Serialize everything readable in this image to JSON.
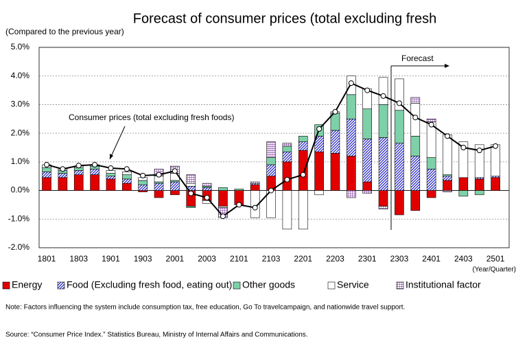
{
  "chart_data": {
    "type": "bar",
    "title": "Forecast of consumer prices (total excluding fresh",
    "subtitle": "(Compared to the previous year)",
    "x_label": "(Year/Quarter)",
    "annotations": {
      "line_label": "Consumer prices (total excluding fresh foods)",
      "forecast": "Forecast"
    },
    "note": "Note: Factors influencing the system include consumption tax, free education, Go To travelcampaign, and nationwide travel support.",
    "source": "Source: “Consumer Price Index.” Statistics Bureau, Ministry of Internal Affairs and Communications.",
    "categories": [
      "1801",
      null,
      "1803",
      null,
      "1901",
      null,
      "1903",
      null,
      "2001",
      null,
      "2003",
      null,
      "2101",
      null,
      "2103",
      null,
      "2201",
      null,
      "2203",
      null,
      "2301",
      null,
      "2303",
      null,
      "2401",
      null,
      "2403",
      null,
      "2501"
    ],
    "series": [
      {
        "name": "Energy",
        "color": "#e00000",
        "pattern": "solid",
        "values": [
          0.45,
          0.45,
          0.55,
          0.55,
          0.4,
          0.25,
          -0.05,
          -0.25,
          -0.15,
          -0.55,
          -0.35,
          -0.55,
          -0.5,
          0.2,
          0.5,
          1.0,
          1.4,
          1.35,
          1.3,
          1.2,
          0.3,
          -0.55,
          -0.85,
          -0.7,
          -0.25,
          0.35,
          0.45,
          0.4,
          0.45
        ]
      },
      {
        "name": "Food (Excluding fresh food, eating out)",
        "color": "#2020c0",
        "pattern": "diagonal",
        "values": [
          0.2,
          0.15,
          0.15,
          0.2,
          0.1,
          0.15,
          0.2,
          0.25,
          0.3,
          0.15,
          0.1,
          0,
          0,
          0.05,
          0.4,
          0.35,
          0.3,
          0.55,
          0.8,
          1.3,
          1.5,
          1.85,
          1.65,
          1.2,
          0.75,
          0.15,
          0,
          0.05,
          0.05
        ]
      },
      {
        "name": "Other goods",
        "color": "#7ed0a8",
        "pattern": "solid",
        "values": [
          0.15,
          0.1,
          0.1,
          0.1,
          0.1,
          0.15,
          0.15,
          0.05,
          0.05,
          -0.05,
          0.05,
          0.1,
          0.05,
          0,
          0.25,
          0.2,
          0.2,
          0.4,
          0.6,
          0.85,
          1.05,
          1.15,
          1.15,
          0.7,
          0.4,
          0.05,
          -0.2,
          -0.15,
          0
        ]
      },
      {
        "name": "Service",
        "color": "#ffffff",
        "pattern": "solid",
        "values": [
          0.1,
          0.05,
          0.05,
          0.05,
          0.1,
          0.1,
          0.1,
          0.2,
          0.25,
          0.1,
          -0.1,
          -0.05,
          0,
          -0.95,
          -0.95,
          -1.35,
          -1.35,
          -0.15,
          0.05,
          0.65,
          0.7,
          0.95,
          1.1,
          1.15,
          1.25,
          1.4,
          1.25,
          1.15,
          1.1
        ]
      },
      {
        "name": "Institutional factor",
        "color": "#8040a0",
        "pattern": "grid",
        "values": [
          0,
          0,
          0,
          0,
          0,
          0,
          0,
          0.25,
          0.25,
          0.3,
          0.1,
          -0.35,
          0,
          0.05,
          0.55,
          0.1,
          0,
          0,
          0,
          -0.25,
          -0.1,
          -0.1,
          0,
          0.2,
          0.1,
          -0.05,
          0,
          0,
          0
        ]
      }
    ],
    "line": {
      "name": "Consumer prices (total excluding fresh foods)",
      "color": "#000000",
      "values": [
        0.9,
        0.75,
        0.87,
        0.9,
        0.78,
        0.75,
        0.52,
        0.55,
        0.68,
        -0.1,
        -0.25,
        -0.9,
        -0.5,
        -0.6,
        0.0,
        0.38,
        0.55,
        2.15,
        2.75,
        3.75,
        3.5,
        3.3,
        3.05,
        2.55,
        2.3,
        1.9,
        1.5,
        1.4,
        1.55
      ]
    },
    "ylim": [
      -2,
      5
    ],
    "yticks": [
      {
        "value": -2,
        "label": "-2.0%"
      },
      {
        "value": -1,
        "label": "-1.0%"
      },
      {
        "value": 0,
        "label": "0.0%"
      },
      {
        "value": 1,
        "label": "1.0%"
      },
      {
        "value": 2,
        "label": "2.0%"
      },
      {
        "value": 3,
        "label": "3.0%"
      },
      {
        "value": 4,
        "label": "4.0%"
      },
      {
        "value": 5,
        "label": "5.0%"
      }
    ],
    "grid": true,
    "legend": "bottom"
  }
}
